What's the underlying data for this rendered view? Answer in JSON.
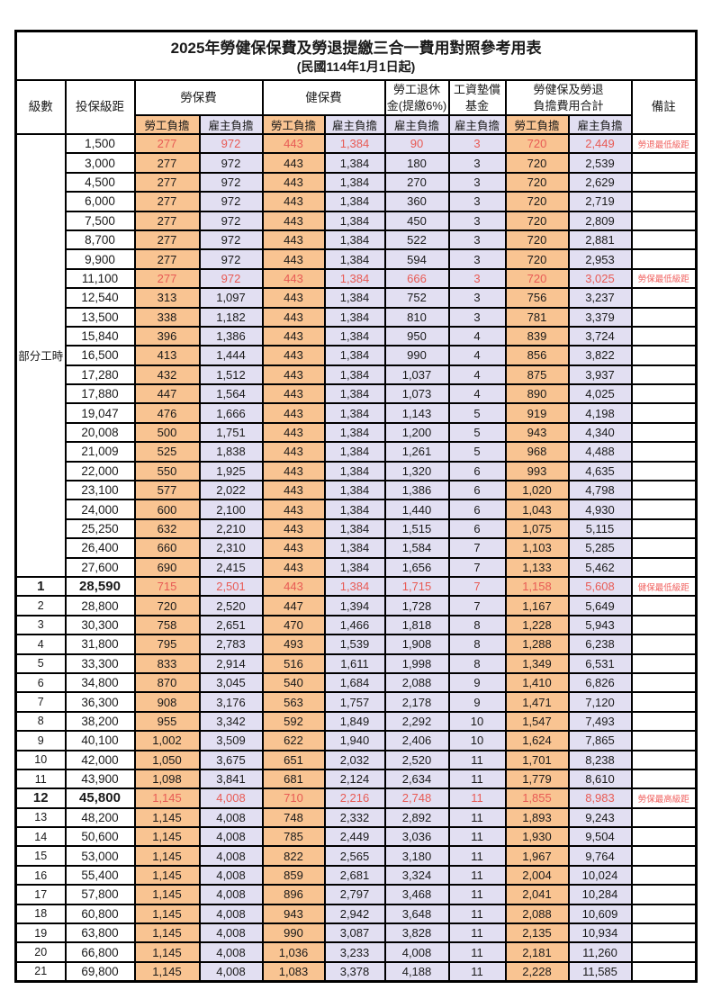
{
  "title": {
    "line1": "2025年勞健保保費及勞退提繳三合一費用對照參考用表",
    "line2": "(民國114年1月1日起)"
  },
  "header": {
    "level": "級數",
    "bracket": "投保級距",
    "labor_insurance": "勞保費",
    "health_insurance": "健保費",
    "pension_line1": "勞工退休",
    "pension_line2": "金(提繳6%)",
    "wage_fund_line1": "工資墊償",
    "wage_fund_line2": "基金",
    "total_line1": "勞健保及勞退",
    "total_line2": "負擔費用合計",
    "remarks": "備註",
    "employee_share": "勞工負擔",
    "employer_share": "雇主負擔"
  },
  "colors": {
    "employee_share_bg": "#f9c492",
    "employer_share_bg": "#e2dff2",
    "highlight_text": "#e85b55",
    "note_text": "#f0605e",
    "grid": "#000000"
  },
  "table": {
    "part_time_label": "部分工時",
    "part_time_rowspan": 23,
    "value_column_styles": [
      "emp",
      "er",
      "emp",
      "er",
      "er",
      "er",
      "emp",
      "er"
    ],
    "rows": [
      {
        "level": "",
        "bracket": "1,500",
        "values": [
          "277",
          "972",
          "443",
          "1,384",
          "90",
          "3",
          "720",
          "2,449"
        ],
        "note": "勞退最低級距",
        "red": true,
        "bold": false
      },
      {
        "level": "",
        "bracket": "3,000",
        "values": [
          "277",
          "972",
          "443",
          "1,384",
          "180",
          "3",
          "720",
          "2,539"
        ],
        "note": "",
        "red": false,
        "bold": false
      },
      {
        "level": "",
        "bracket": "4,500",
        "values": [
          "277",
          "972",
          "443",
          "1,384",
          "270",
          "3",
          "720",
          "2,629"
        ],
        "note": "",
        "red": false,
        "bold": false
      },
      {
        "level": "",
        "bracket": "6,000",
        "values": [
          "277",
          "972",
          "443",
          "1,384",
          "360",
          "3",
          "720",
          "2,719"
        ],
        "note": "",
        "red": false,
        "bold": false
      },
      {
        "level": "",
        "bracket": "7,500",
        "values": [
          "277",
          "972",
          "443",
          "1,384",
          "450",
          "3",
          "720",
          "2,809"
        ],
        "note": "",
        "red": false,
        "bold": false
      },
      {
        "level": "",
        "bracket": "8,700",
        "values": [
          "277",
          "972",
          "443",
          "1,384",
          "522",
          "3",
          "720",
          "2,881"
        ],
        "note": "",
        "red": false,
        "bold": false
      },
      {
        "level": "",
        "bracket": "9,900",
        "values": [
          "277",
          "972",
          "443",
          "1,384",
          "594",
          "3",
          "720",
          "2,953"
        ],
        "note": "",
        "red": false,
        "bold": false
      },
      {
        "level": "",
        "bracket": "11,100",
        "values": [
          "277",
          "972",
          "443",
          "1,384",
          "666",
          "3",
          "720",
          "3,025"
        ],
        "note": "勞保最低級距",
        "red": true,
        "bold": false
      },
      {
        "level": "",
        "bracket": "12,540",
        "values": [
          "313",
          "1,097",
          "443",
          "1,384",
          "752",
          "3",
          "756",
          "3,237"
        ],
        "note": "",
        "red": false,
        "bold": false
      },
      {
        "level": "",
        "bracket": "13,500",
        "values": [
          "338",
          "1,182",
          "443",
          "1,384",
          "810",
          "3",
          "781",
          "3,379"
        ],
        "note": "",
        "red": false,
        "bold": false
      },
      {
        "level": "",
        "bracket": "15,840",
        "values": [
          "396",
          "1,386",
          "443",
          "1,384",
          "950",
          "4",
          "839",
          "3,724"
        ],
        "note": "",
        "red": false,
        "bold": false
      },
      {
        "level": "",
        "bracket": "16,500",
        "values": [
          "413",
          "1,444",
          "443",
          "1,384",
          "990",
          "4",
          "856",
          "3,822"
        ],
        "note": "",
        "red": false,
        "bold": false
      },
      {
        "level": "",
        "bracket": "17,280",
        "values": [
          "432",
          "1,512",
          "443",
          "1,384",
          "1,037",
          "4",
          "875",
          "3,937"
        ],
        "note": "",
        "red": false,
        "bold": false
      },
      {
        "level": "",
        "bracket": "17,880",
        "values": [
          "447",
          "1,564",
          "443",
          "1,384",
          "1,073",
          "4",
          "890",
          "4,025"
        ],
        "note": "",
        "red": false,
        "bold": false
      },
      {
        "level": "",
        "bracket": "19,047",
        "values": [
          "476",
          "1,666",
          "443",
          "1,384",
          "1,143",
          "5",
          "919",
          "4,198"
        ],
        "note": "",
        "red": false,
        "bold": false
      },
      {
        "level": "",
        "bracket": "20,008",
        "values": [
          "500",
          "1,751",
          "443",
          "1,384",
          "1,200",
          "5",
          "943",
          "4,340"
        ],
        "note": "",
        "red": false,
        "bold": false
      },
      {
        "level": "",
        "bracket": "21,009",
        "values": [
          "525",
          "1,838",
          "443",
          "1,384",
          "1,261",
          "5",
          "968",
          "4,488"
        ],
        "note": "",
        "red": false,
        "bold": false
      },
      {
        "level": "",
        "bracket": "22,000",
        "values": [
          "550",
          "1,925",
          "443",
          "1,384",
          "1,320",
          "6",
          "993",
          "4,635"
        ],
        "note": "",
        "red": false,
        "bold": false
      },
      {
        "level": "",
        "bracket": "23,100",
        "values": [
          "577",
          "2,022",
          "443",
          "1,384",
          "1,386",
          "6",
          "1,020",
          "4,798"
        ],
        "note": "",
        "red": false,
        "bold": false
      },
      {
        "level": "",
        "bracket": "24,000",
        "values": [
          "600",
          "2,100",
          "443",
          "1,384",
          "1,440",
          "6",
          "1,043",
          "4,930"
        ],
        "note": "",
        "red": false,
        "bold": false
      },
      {
        "level": "",
        "bracket": "25,250",
        "values": [
          "632",
          "2,210",
          "443",
          "1,384",
          "1,515",
          "6",
          "1,075",
          "5,115"
        ],
        "note": "",
        "red": false,
        "bold": false
      },
      {
        "level": "",
        "bracket": "26,400",
        "values": [
          "660",
          "2,310",
          "443",
          "1,384",
          "1,584",
          "7",
          "1,103",
          "5,285"
        ],
        "note": "",
        "red": false,
        "bold": false
      },
      {
        "level": "",
        "bracket": "27,600",
        "values": [
          "690",
          "2,415",
          "443",
          "1,384",
          "1,656",
          "7",
          "1,133",
          "5,462"
        ],
        "note": "",
        "red": false,
        "bold": false
      },
      {
        "level": "1",
        "bracket": "28,590",
        "values": [
          "715",
          "2,501",
          "443",
          "1,384",
          "1,715",
          "7",
          "1,158",
          "5,608"
        ],
        "note": "健保最低級距",
        "red": true,
        "bold": true
      },
      {
        "level": "2",
        "bracket": "28,800",
        "values": [
          "720",
          "2,520",
          "447",
          "1,394",
          "1,728",
          "7",
          "1,167",
          "5,649"
        ],
        "note": "",
        "red": false,
        "bold": false
      },
      {
        "level": "3",
        "bracket": "30,300",
        "values": [
          "758",
          "2,651",
          "470",
          "1,466",
          "1,818",
          "8",
          "1,228",
          "5,943"
        ],
        "note": "",
        "red": false,
        "bold": false
      },
      {
        "level": "4",
        "bracket": "31,800",
        "values": [
          "795",
          "2,783",
          "493",
          "1,539",
          "1,908",
          "8",
          "1,288",
          "6,238"
        ],
        "note": "",
        "red": false,
        "bold": false
      },
      {
        "level": "5",
        "bracket": "33,300",
        "values": [
          "833",
          "2,914",
          "516",
          "1,611",
          "1,998",
          "8",
          "1,349",
          "6,531"
        ],
        "note": "",
        "red": false,
        "bold": false
      },
      {
        "level": "6",
        "bracket": "34,800",
        "values": [
          "870",
          "3,045",
          "540",
          "1,684",
          "2,088",
          "9",
          "1,410",
          "6,826"
        ],
        "note": "",
        "red": false,
        "bold": false
      },
      {
        "level": "7",
        "bracket": "36,300",
        "values": [
          "908",
          "3,176",
          "563",
          "1,757",
          "2,178",
          "9",
          "1,471",
          "7,120"
        ],
        "note": "",
        "red": false,
        "bold": false
      },
      {
        "level": "8",
        "bracket": "38,200",
        "values": [
          "955",
          "3,342",
          "592",
          "1,849",
          "2,292",
          "10",
          "1,547",
          "7,493"
        ],
        "note": "",
        "red": false,
        "bold": false
      },
      {
        "level": "9",
        "bracket": "40,100",
        "values": [
          "1,002",
          "3,509",
          "622",
          "1,940",
          "2,406",
          "10",
          "1,624",
          "7,865"
        ],
        "note": "",
        "red": false,
        "bold": false
      },
      {
        "level": "10",
        "bracket": "42,000",
        "values": [
          "1,050",
          "3,675",
          "651",
          "2,032",
          "2,520",
          "11",
          "1,701",
          "8,238"
        ],
        "note": "",
        "red": false,
        "bold": false
      },
      {
        "level": "11",
        "bracket": "43,900",
        "values": [
          "1,098",
          "3,841",
          "681",
          "2,124",
          "2,634",
          "11",
          "1,779",
          "8,610"
        ],
        "note": "",
        "red": false,
        "bold": false
      },
      {
        "level": "12",
        "bracket": "45,800",
        "values": [
          "1,145",
          "4,008",
          "710",
          "2,216",
          "2,748",
          "11",
          "1,855",
          "8,983"
        ],
        "note": "勞保最高級距",
        "red": true,
        "bold": true
      },
      {
        "level": "13",
        "bracket": "48,200",
        "values": [
          "1,145",
          "4,008",
          "748",
          "2,332",
          "2,892",
          "11",
          "1,893",
          "9,243"
        ],
        "note": "",
        "red": false,
        "bold": false
      },
      {
        "level": "14",
        "bracket": "50,600",
        "values": [
          "1,145",
          "4,008",
          "785",
          "2,449",
          "3,036",
          "11",
          "1,930",
          "9,504"
        ],
        "note": "",
        "red": false,
        "bold": false
      },
      {
        "level": "15",
        "bracket": "53,000",
        "values": [
          "1,145",
          "4,008",
          "822",
          "2,565",
          "3,180",
          "11",
          "1,967",
          "9,764"
        ],
        "note": "",
        "red": false,
        "bold": false
      },
      {
        "level": "16",
        "bracket": "55,400",
        "values": [
          "1,145",
          "4,008",
          "859",
          "2,681",
          "3,324",
          "11",
          "2,004",
          "10,024"
        ],
        "note": "",
        "red": false,
        "bold": false
      },
      {
        "level": "17",
        "bracket": "57,800",
        "values": [
          "1,145",
          "4,008",
          "896",
          "2,797",
          "3,468",
          "11",
          "2,041",
          "10,284"
        ],
        "note": "",
        "red": false,
        "bold": false
      },
      {
        "level": "18",
        "bracket": "60,800",
        "values": [
          "1,145",
          "4,008",
          "943",
          "2,942",
          "3,648",
          "11",
          "2,088",
          "10,609"
        ],
        "note": "",
        "red": false,
        "bold": false
      },
      {
        "level": "19",
        "bracket": "63,800",
        "values": [
          "1,145",
          "4,008",
          "990",
          "3,087",
          "3,828",
          "11",
          "2,135",
          "10,934"
        ],
        "note": "",
        "red": false,
        "bold": false
      },
      {
        "level": "20",
        "bracket": "66,800",
        "values": [
          "1,145",
          "4,008",
          "1,036",
          "3,233",
          "4,008",
          "11",
          "2,181",
          "11,260"
        ],
        "note": "",
        "red": false,
        "bold": false
      },
      {
        "level": "21",
        "bracket": "69,800",
        "values": [
          "1,145",
          "4,008",
          "1,083",
          "3,378",
          "4,188",
          "11",
          "2,228",
          "11,585"
        ],
        "note": "",
        "red": false,
        "bold": false
      }
    ]
  }
}
